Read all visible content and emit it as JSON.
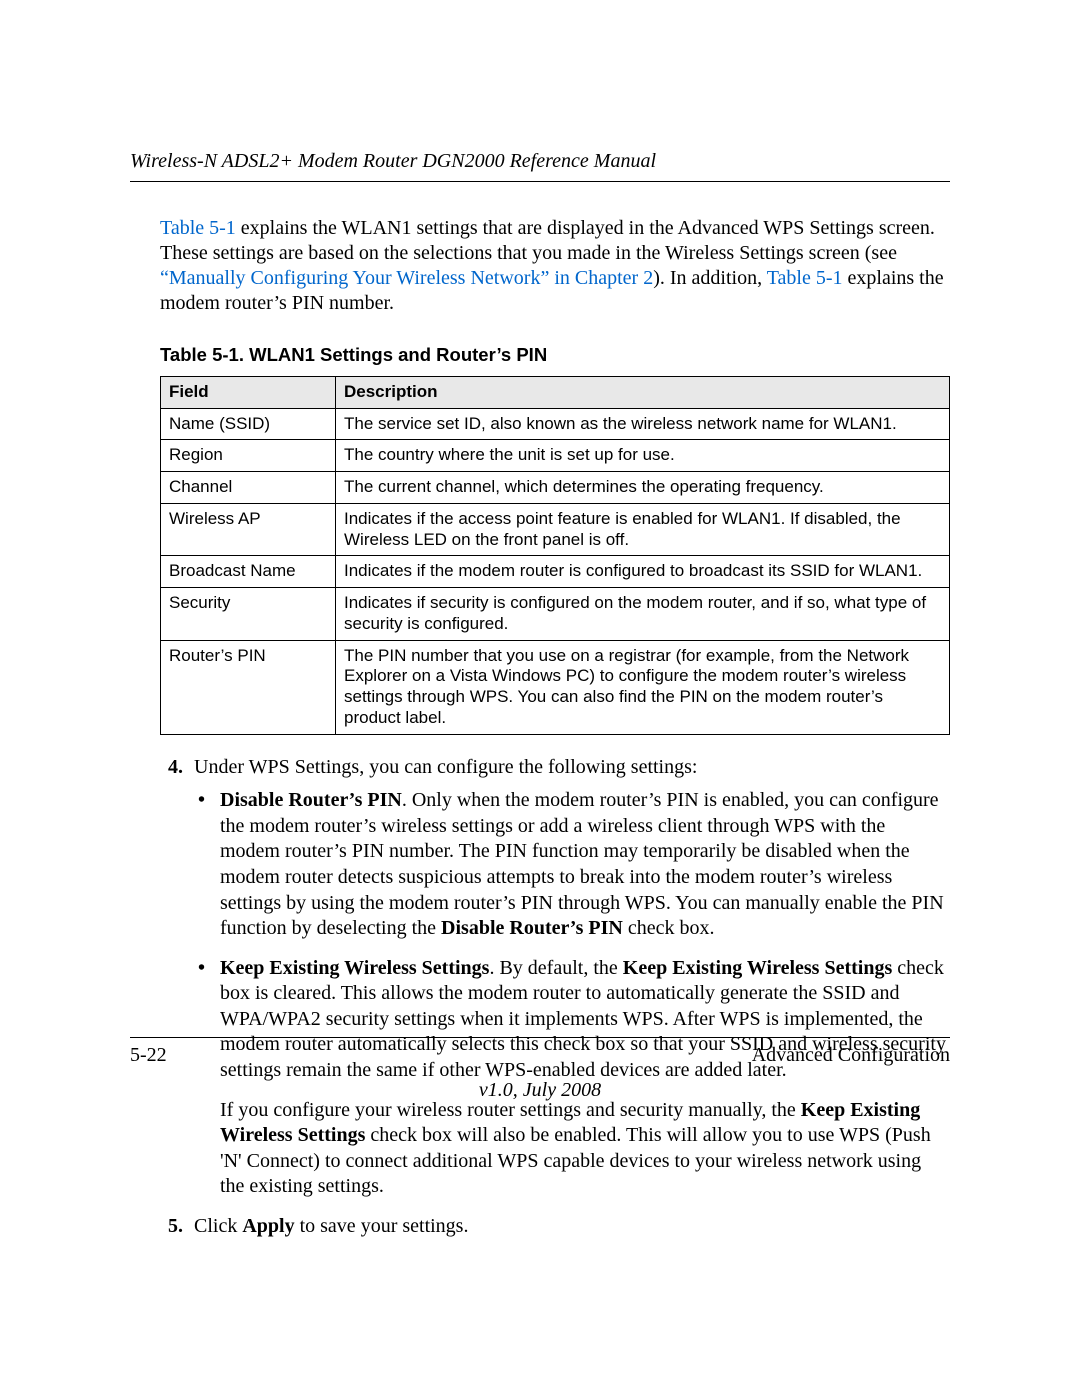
{
  "header": {
    "running_title": "Wireless-N ADSL2+ Modem Router DGN2000 Reference Manual"
  },
  "intro": {
    "pre_link1": "",
    "link1": "Table 5-1",
    "mid1": " explains the WLAN1 settings that are displayed in the Advanced WPS Settings screen. These settings are based on the selections that you made in the Wireless Settings screen (see ",
    "link2": "“Manually Configuring Your Wireless Network” in Chapter 2",
    "mid2": "). In addition, ",
    "link3": "Table 5-1",
    "tail": " explains the modem router’s PIN number."
  },
  "table": {
    "caption": "Table 5-1. WLAN1 Settings and Router’s PIN",
    "header_field": "Field",
    "header_desc": "Description",
    "rows": [
      {
        "field": "Name (SSID)",
        "desc": "The service set ID, also known as the wireless network name for WLAN1."
      },
      {
        "field": "Region",
        "desc": "The country where the unit is set up for use."
      },
      {
        "field": "Channel",
        "desc": "The current channel, which determines the operating frequency."
      },
      {
        "field": "Wireless AP",
        "desc": "Indicates if the access point feature is enabled for WLAN1. If disabled, the Wireless LED on the front panel is off."
      },
      {
        "field": "Broadcast Name",
        "desc": "Indicates if the modem router is configured to broadcast its SSID for WLAN1."
      },
      {
        "field": "Security",
        "desc": "Indicates if security is configured on the modem router, and if so, what type of security is configured."
      },
      {
        "field": "Router’s PIN",
        "desc": "The PIN number that you use on a registrar (for example, from the Network Explorer on a Vista Windows PC) to configure the modem router’s wireless settings through WPS. You can also find the PIN on the modem router’s product label."
      }
    ]
  },
  "steps": {
    "start": 4,
    "s4_lead": "Under WPS Settings, you can configure the following settings:",
    "bullets": {
      "b1_bold": "Disable Router’s PIN",
      "b1_text_a": ". Only when the modem router’s PIN is enabled, you can configure the modem router’s wireless settings or add a wireless client through WPS with the modem router’s PIN number. The PIN function may temporarily be disabled when the modem router detects suspicious attempts to break into the modem router’s wireless settings by using the modem router’s PIN through WPS. You can manually enable the PIN function by deselecting the ",
      "b1_bold2": "Disable Router’s PIN",
      "b1_text_b": " check box.",
      "b2_bold": "Keep Existing Wireless Settings",
      "b2_text_a": ". By default, the ",
      "b2_bold2": "Keep Existing Wireless Settings",
      "b2_text_b": " check box is cleared. This allows the modem router to automatically generate the SSID and WPA/WPA2 security settings when it implements WPS. After WPS is implemented, the modem router automatically selects this check box so that your SSID and wireless security settings remain the same if other WPS-enabled devices are added later.",
      "b2_para2_a": "If you configure your wireless router settings and security manually, the ",
      "b2_para2_bold": "Keep Existing Wireless Settings",
      "b2_para2_b": " check box will also be enabled. This will allow you to use WPS (Push 'N' Connect) to connect additional WPS capable devices to your wireless network using the existing settings."
    },
    "s5_a": "Click ",
    "s5_bold": "Apply",
    "s5_b": " to save your settings."
  },
  "footer": {
    "page_num": "5-22",
    "section": "Advanced Configuration",
    "version": "v1.0, July 2008"
  },
  "colors": {
    "link": "#0066cc",
    "header_bg": "#e8e8e8"
  }
}
